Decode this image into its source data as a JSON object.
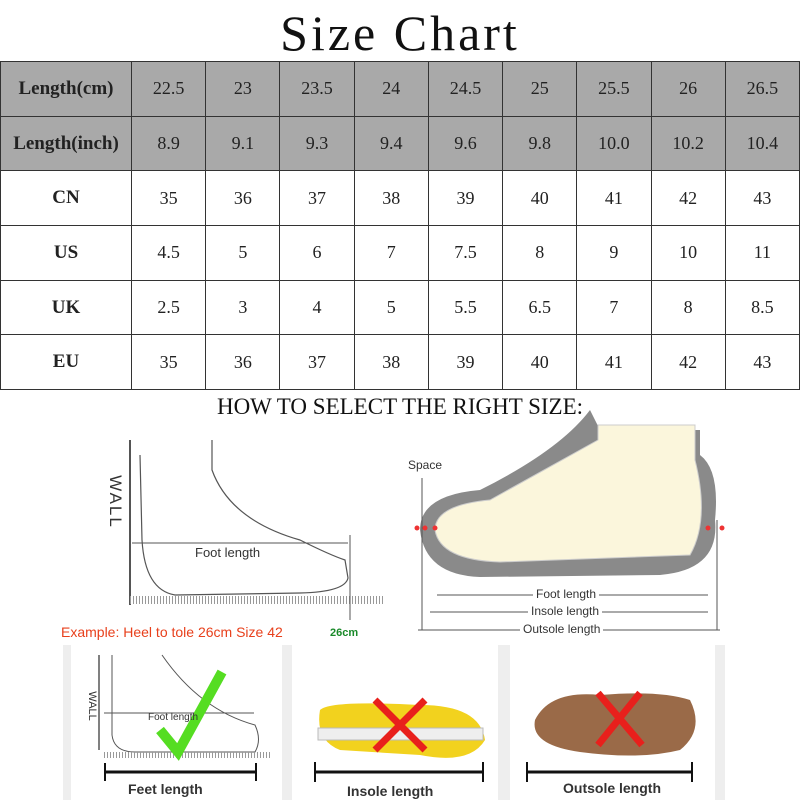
{
  "title": "Size Chart",
  "table": {
    "rows": [
      {
        "label": "Length(cm)",
        "values": [
          "22.5",
          "23",
          "23.5",
          "24",
          "24.5",
          "25",
          "25.5",
          "26",
          "26.5"
        ],
        "shaded": true
      },
      {
        "label": "Length(inch)",
        "values": [
          "8.9",
          "9.1",
          "9.3",
          "9.4",
          "9.6",
          "9.8",
          "10.0",
          "10.2",
          "10.4"
        ],
        "shaded": true
      },
      {
        "label": "CN",
        "values": [
          "35",
          "36",
          "37",
          "38",
          "39",
          "40",
          "41",
          "42",
          "43"
        ],
        "shaded": false
      },
      {
        "label": "US",
        "values": [
          "4.5",
          "5",
          "6",
          "7",
          "7.5",
          "8",
          "9",
          "10",
          "11"
        ],
        "shaded": false
      },
      {
        "label": "UK",
        "values": [
          "2.5",
          "3",
          "4",
          "5",
          "5.5",
          "6.5",
          "7",
          "8",
          "8.5"
        ],
        "shaded": false
      },
      {
        "label": "EU",
        "values": [
          "35",
          "36",
          "37",
          "38",
          "39",
          "40",
          "41",
          "42",
          "43"
        ],
        "shaded": false
      }
    ]
  },
  "how_to": "HOW TO SELECT THE RIGHT SIZE:",
  "diagram_left": {
    "wall": "WALL",
    "foot_length": "Foot length",
    "ruler_mark": "26cm",
    "example": "Example: Heel to tole 26cm Size 42"
  },
  "diagram_right": {
    "space": "Space",
    "foot_length": "Foot length",
    "insole_length": "Insole length",
    "outsole_length": "Outsole length"
  },
  "panels": [
    {
      "label": "Feet length",
      "wall": "WALL",
      "foot_length": "Foot length",
      "mark": "check-icon"
    },
    {
      "label": "Insole length",
      "mark": "cross-icon"
    },
    {
      "label": "Outsole length",
      "mark": "cross-icon"
    }
  ],
  "colors": {
    "header_bg": "#a9a9a9",
    "example_text": "#e8401c",
    "ruler_mark": "#1a8a2a",
    "check": "#55dd22",
    "cross": "#e8201c"
  }
}
